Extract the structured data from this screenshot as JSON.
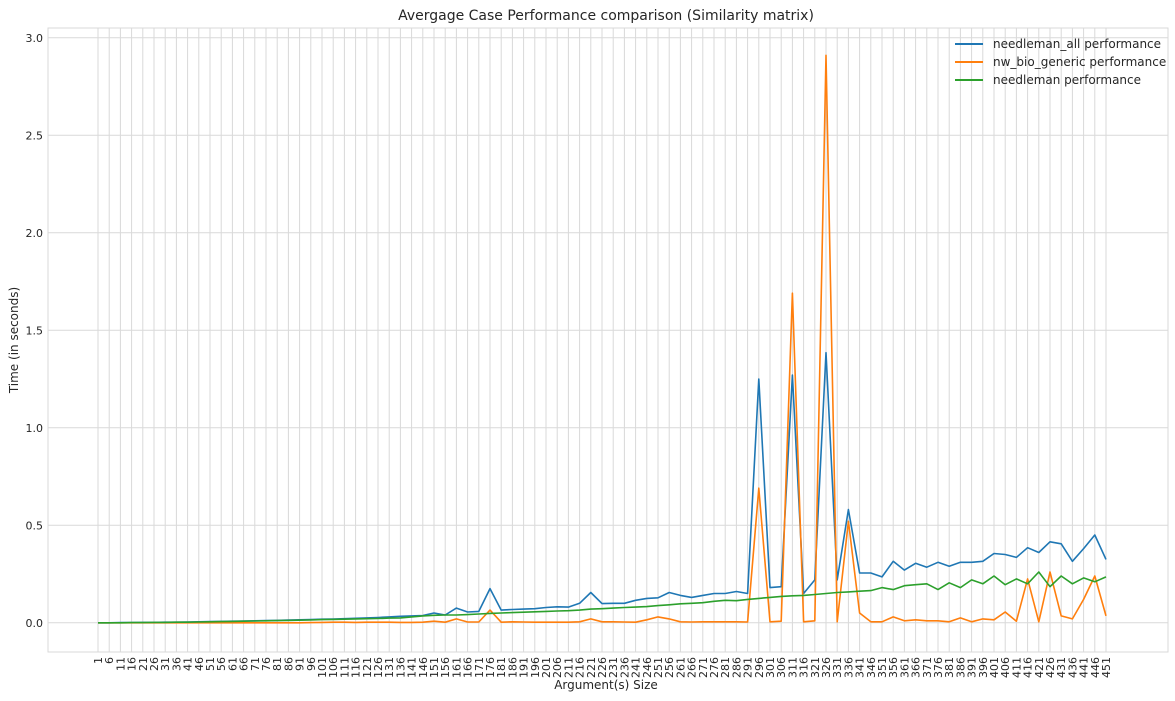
{
  "chart_data": {
    "type": "line",
    "title": "Avergage Case Performance comparison (Similarity matrix)",
    "xlabel": "Argument(s) Size",
    "ylabel": "Time (in seconds)",
    "ylim": [
      -0.15,
      3.05
    ],
    "yticks": [
      0.0,
      0.5,
      1.0,
      1.5,
      2.0,
      2.5,
      3.0
    ],
    "ytick_labels": [
      "0.0",
      "0.5",
      "1.0",
      "1.5",
      "2.0",
      "2.5",
      "3.0"
    ],
    "grid": true,
    "legend_position": "top-right",
    "x": [
      1,
      6,
      11,
      16,
      21,
      26,
      31,
      36,
      41,
      46,
      51,
      56,
      61,
      66,
      71,
      76,
      81,
      86,
      91,
      96,
      101,
      106,
      111,
      116,
      121,
      126,
      131,
      136,
      141,
      146,
      151,
      156,
      161,
      166,
      171,
      176,
      181,
      186,
      191,
      196,
      201,
      206,
      211,
      216,
      221,
      226,
      231,
      236,
      241,
      246,
      251,
      256,
      261,
      266,
      271,
      276,
      281,
      286,
      291,
      296,
      301,
      306,
      311,
      316,
      321,
      326,
      331,
      336,
      341,
      346,
      351,
      356,
      361,
      366,
      371,
      376,
      381,
      386,
      391,
      396,
      401,
      406,
      411,
      416,
      421,
      426,
      431,
      436,
      441,
      446,
      451
    ],
    "series": [
      {
        "name": "needleman_all performance",
        "color": "#1f77b4",
        "values": [
          0,
          0,
          0.001,
          0.001,
          0.002,
          0.002,
          0.003,
          0.003,
          0.004,
          0.005,
          0.006,
          0.007,
          0.008,
          0.009,
          0.01,
          0.011,
          0.012,
          0.014,
          0.015,
          0.016,
          0.018,
          0.019,
          0.021,
          0.023,
          0.025,
          0.027,
          0.03,
          0.033,
          0.035,
          0.037,
          0.05,
          0.04,
          0.075,
          0.055,
          0.058,
          0.175,
          0.065,
          0.068,
          0.07,
          0.072,
          0.078,
          0.082,
          0.08,
          0.1,
          0.155,
          0.098,
          0.1,
          0.1,
          0.115,
          0.125,
          0.128,
          0.155,
          0.14,
          0.13,
          0.14,
          0.15,
          0.15,
          0.16,
          0.15,
          1.25,
          0.18,
          0.185,
          1.27,
          0.15,
          0.22,
          1.385,
          0.22,
          0.58,
          0.255,
          0.255,
          0.235,
          0.315,
          0.27,
          0.305,
          0.285,
          0.31,
          0.29,
          0.31,
          0.31,
          0.315,
          0.355,
          0.35,
          0.335,
          0.385,
          0.36,
          0.415,
          0.405,
          0.315,
          0.38,
          0.45,
          0.325
        ]
      },
      {
        "name": "nw_bio_generic performance",
        "color": "#ff7f0e",
        "values": [
          0,
          0,
          0,
          0,
          0,
          0,
          0,
          0,
          0,
          0,
          0,
          0,
          0,
          0,
          0,
          0,
          0,
          0,
          0,
          0.001,
          0.002,
          0.003,
          0.003,
          0.002,
          0.003,
          0.003,
          0.003,
          0.002,
          0.002,
          0.003,
          0.008,
          0.003,
          0.02,
          0.004,
          0.004,
          0.065,
          0.003,
          0.005,
          0.004,
          0.003,
          0.003,
          0.003,
          0.003,
          0.005,
          0.02,
          0.005,
          0.005,
          0.004,
          0.003,
          0.015,
          0.03,
          0.02,
          0.005,
          0.004,
          0.005,
          0.005,
          0.005,
          0.005,
          0.004,
          0.69,
          0.005,
          0.008,
          1.69,
          0.005,
          0.01,
          2.91,
          0.005,
          0.52,
          0.05,
          0.005,
          0.005,
          0.03,
          0.01,
          0.015,
          0.01,
          0.01,
          0.005,
          0.025,
          0.005,
          0.02,
          0.015,
          0.055,
          0.008,
          0.225,
          0.005,
          0.26,
          0.035,
          0.02,
          0.12,
          0.24,
          0.035
        ]
      },
      {
        "name": "needleman performance",
        "color": "#2ca02c",
        "values": [
          0,
          0,
          0,
          0.001,
          0.001,
          0.002,
          0.002,
          0.003,
          0.003,
          0.004,
          0.005,
          0.006,
          0.007,
          0.008,
          0.009,
          0.01,
          0.011,
          0.012,
          0.013,
          0.014,
          0.016,
          0.017,
          0.018,
          0.02,
          0.021,
          0.022,
          0.024,
          0.025,
          0.03,
          0.035,
          0.038,
          0.04,
          0.04,
          0.042,
          0.045,
          0.048,
          0.05,
          0.052,
          0.054,
          0.056,
          0.058,
          0.06,
          0.062,
          0.065,
          0.07,
          0.072,
          0.075,
          0.078,
          0.08,
          0.083,
          0.088,
          0.092,
          0.097,
          0.1,
          0.103,
          0.11,
          0.115,
          0.113,
          0.12,
          0.125,
          0.13,
          0.135,
          0.138,
          0.14,
          0.145,
          0.15,
          0.155,
          0.158,
          0.162,
          0.165,
          0.18,
          0.17,
          0.19,
          0.195,
          0.2,
          0.17,
          0.205,
          0.18,
          0.22,
          0.2,
          0.24,
          0.195,
          0.225,
          0.2,
          0.26,
          0.185,
          0.24,
          0.2,
          0.23,
          0.21,
          0.235
        ]
      }
    ]
  }
}
